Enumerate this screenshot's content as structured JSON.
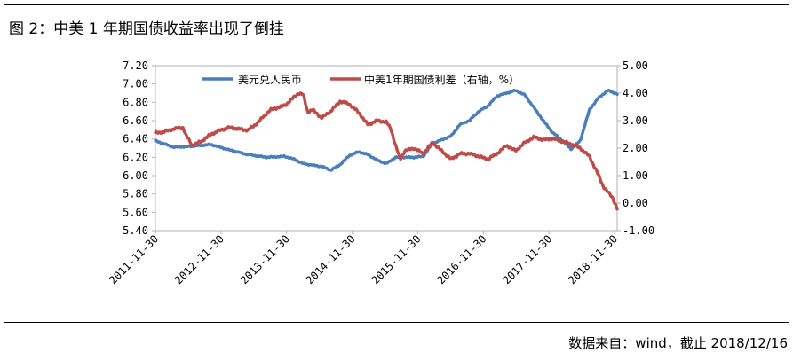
{
  "figure": {
    "title": "图 2：中美 1 年期国债收益率出现了倒挂",
    "source": "数据来自：wind，截止 2018/12/16"
  },
  "chart_data": {
    "type": "line",
    "x_start": "2011-11-30",
    "x_end": "2018-12-14",
    "xtick_labels": [
      "2011-11-30",
      "2012-11-30",
      "2013-11-30",
      "2014-11-30",
      "2015-11-30",
      "2016-11-30",
      "2017-11-30",
      "2018-11-30"
    ],
    "y_left": {
      "min": 5.4,
      "max": 7.2,
      "ticks": [
        "7.20",
        "7.00",
        "6.80",
        "6.60",
        "6.40",
        "6.20",
        "6.00",
        "5.80",
        "5.60",
        "5.40"
      ]
    },
    "y_right": {
      "min": -1.0,
      "max": 5.0,
      "ticks": [
        "5.00",
        "4.00",
        "3.00",
        "2.00",
        "1.00",
        "0.00",
        "-1.00"
      ]
    },
    "series": [
      {
        "name": "美元兑人民币",
        "axis": "left",
        "color": "#4a7ebb",
        "t": [
          0,
          0.04,
          0.08,
          0.12,
          0.16,
          0.2,
          0.24,
          0.28,
          0.3,
          0.32,
          0.36,
          0.38,
          0.4,
          0.42,
          0.44,
          0.46,
          0.48,
          0.5,
          0.52,
          0.54,
          0.56,
          0.58,
          0.6,
          0.62,
          0.64,
          0.66,
          0.68,
          0.7,
          0.72,
          0.74,
          0.76,
          0.78,
          0.8,
          0.82,
          0.84,
          0.86,
          0.88,
          0.9,
          0.92,
          0.94,
          0.96,
          0.98,
          1.0
        ],
        "values": [
          6.38,
          6.31,
          6.32,
          6.34,
          6.28,
          6.23,
          6.2,
          6.21,
          6.18,
          6.13,
          6.1,
          6.06,
          6.12,
          6.22,
          6.26,
          6.23,
          6.17,
          6.13,
          6.2,
          6.2,
          6.2,
          6.21,
          6.35,
          6.39,
          6.43,
          6.56,
          6.6,
          6.7,
          6.76,
          6.87,
          6.9,
          6.93,
          6.88,
          6.74,
          6.6,
          6.47,
          6.39,
          6.29,
          6.38,
          6.72,
          6.85,
          6.93,
          6.89
        ]
      },
      {
        "name": "中美1年期国债利差（右轴，%）",
        "axis": "right",
        "color": "#be4b48",
        "t": [
          0,
          0.02,
          0.04,
          0.06,
          0.065,
          0.08,
          0.1,
          0.12,
          0.14,
          0.16,
          0.18,
          0.2,
          0.22,
          0.24,
          0.25,
          0.28,
          0.29,
          0.3,
          0.31,
          0.32,
          0.33,
          0.34,
          0.36,
          0.38,
          0.4,
          0.42,
          0.44,
          0.46,
          0.48,
          0.5,
          0.51,
          0.515,
          0.52,
          0.53,
          0.54,
          0.56,
          0.58,
          0.6,
          0.62,
          0.64,
          0.66,
          0.68,
          0.7,
          0.72,
          0.74,
          0.76,
          0.78,
          0.8,
          0.82,
          0.84,
          0.86,
          0.88,
          0.9,
          0.92,
          0.94,
          0.96,
          0.97,
          0.98,
          0.99,
          1.0
        ],
        "values": [
          2.55,
          2.6,
          2.7,
          2.75,
          2.5,
          2.1,
          2.25,
          2.5,
          2.65,
          2.75,
          2.7,
          2.65,
          2.9,
          3.25,
          3.4,
          3.55,
          3.7,
          3.85,
          4.0,
          3.95,
          3.3,
          3.4,
          3.1,
          3.35,
          3.7,
          3.6,
          3.3,
          2.85,
          3.0,
          2.95,
          2.7,
          2.4,
          2.1,
          1.6,
          1.9,
          2.0,
          1.8,
          2.2,
          1.9,
          1.6,
          1.8,
          1.8,
          1.7,
          1.6,
          1.8,
          2.1,
          1.9,
          2.2,
          2.4,
          2.3,
          2.35,
          2.25,
          2.15,
          2.0,
          1.7,
          1.0,
          0.6,
          0.4,
          0.2,
          -0.2
        ]
      }
    ]
  }
}
